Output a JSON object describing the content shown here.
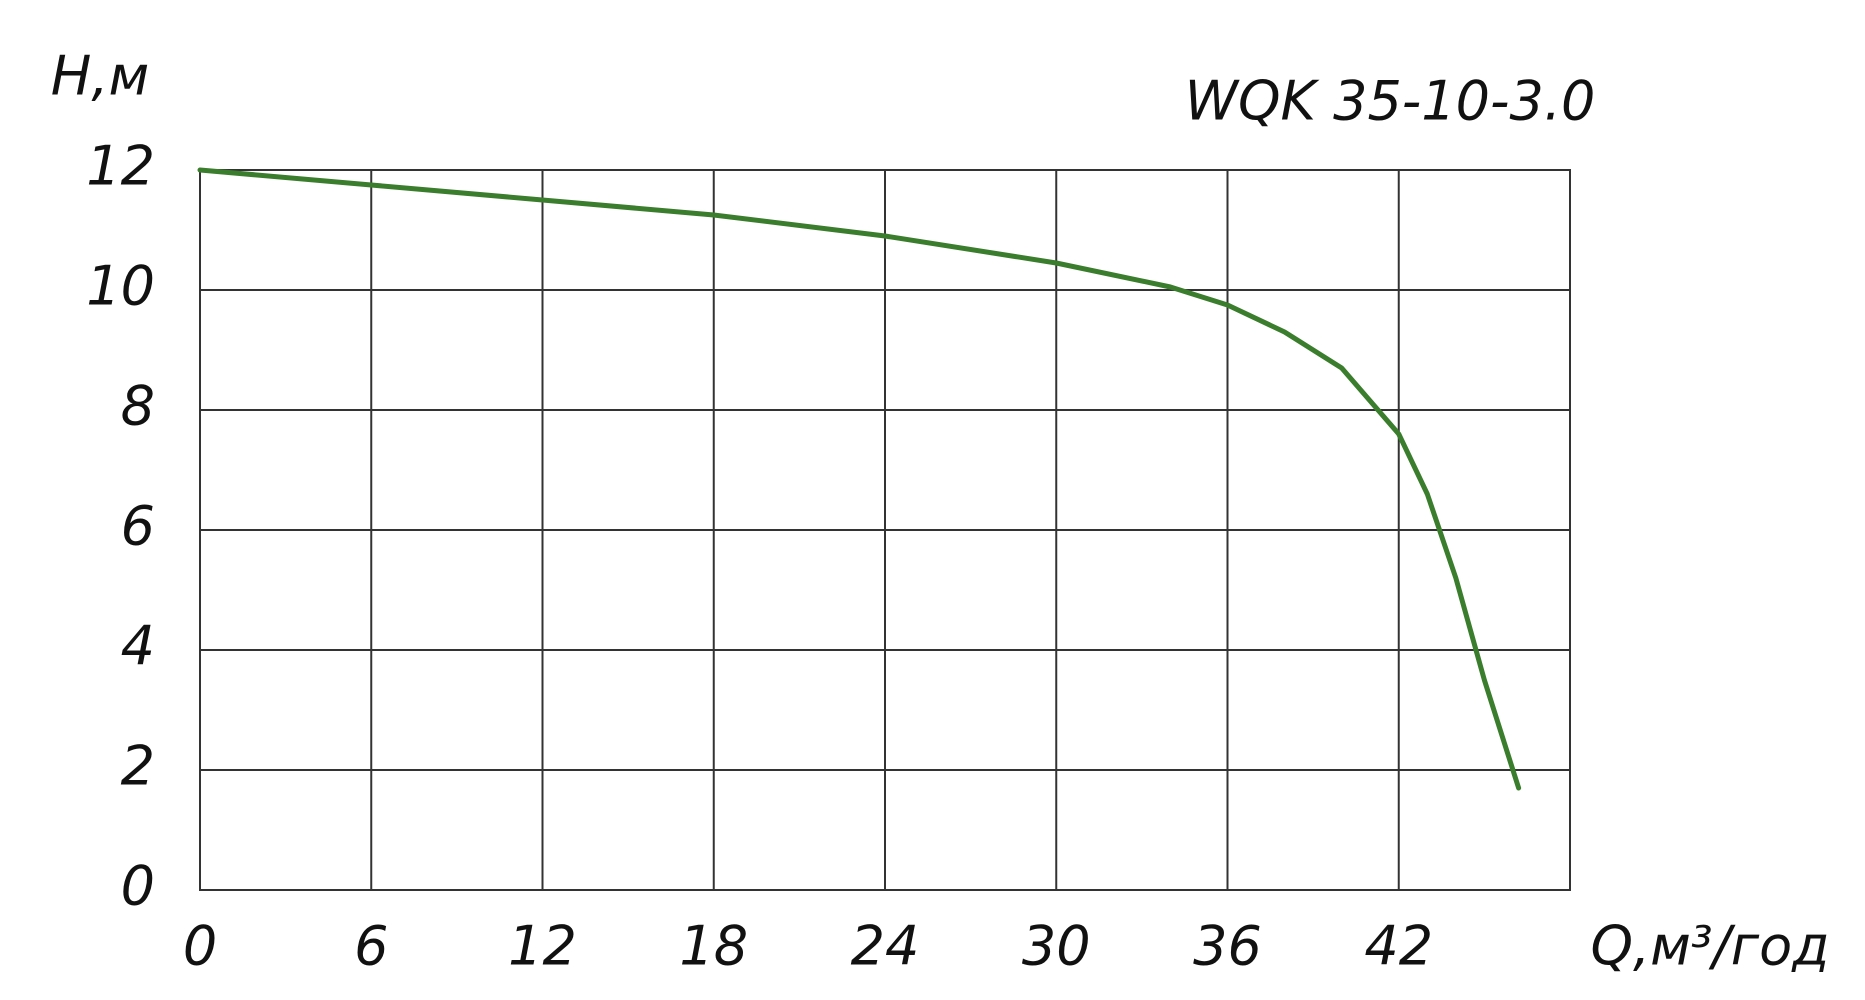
{
  "chart_data": {
    "type": "line",
    "title": "WQK 35-10-3.0",
    "y_label": "H,м",
    "x_label": "Q,м³/год",
    "x": [
      0,
      6,
      12,
      18,
      24,
      30,
      34,
      36,
      38,
      40,
      42,
      43,
      44,
      45,
      46.2
    ],
    "series": [
      {
        "color": "#3a7d2c",
        "values": [
          12,
          11.75,
          11.5,
          11.25,
          10.9,
          10.45,
          10.05,
          9.75,
          9.3,
          8.7,
          7.6,
          6.6,
          5.2,
          3.5,
          1.7
        ]
      }
    ],
    "xlim": [
      0,
      48
    ],
    "ylim": [
      0,
      12
    ],
    "xticks": [
      0,
      6,
      12,
      18,
      24,
      30,
      36,
      42
    ],
    "yticks": [
      0,
      2,
      4,
      6,
      8,
      10,
      12
    ],
    "grid": true
  }
}
